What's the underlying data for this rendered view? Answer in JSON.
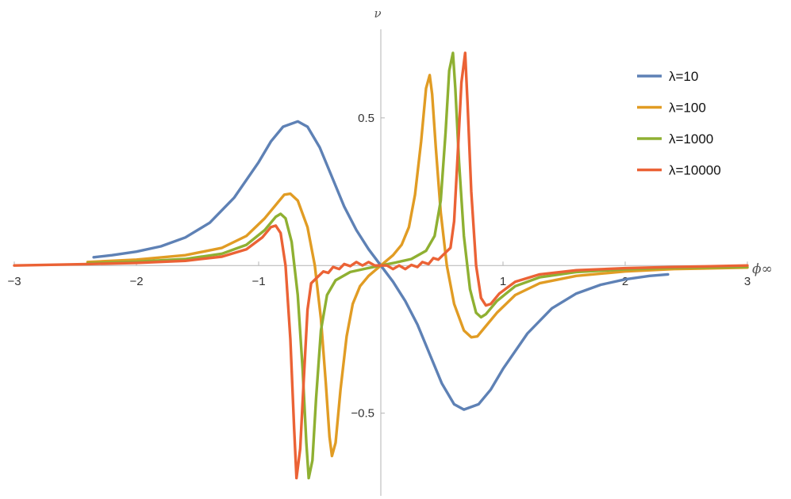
{
  "chart_data": {
    "type": "line",
    "title": "",
    "xlabel": "ϕ∞",
    "ylabel": "ν",
    "xlim": [
      -3,
      3
    ],
    "ylim": [
      -0.78,
      0.8
    ],
    "x_ticks": [
      -3,
      -2,
      -1,
      1,
      2,
      3
    ],
    "x_tick_labels": [
      "−3",
      "−2",
      "−1",
      "1",
      "2",
      "3"
    ],
    "y_ticks": [
      -0.5,
      0.5
    ],
    "y_tick_labels": [
      "−0.5",
      "0.5"
    ],
    "grid": false,
    "legend_position": "top-right",
    "series": [
      {
        "name": "λ=10",
        "color": "#5e81b5",
        "points": [
          [
            -2.35,
            0.028
          ],
          [
            -2.2,
            0.035
          ],
          [
            -2.0,
            0.047
          ],
          [
            -1.8,
            0.065
          ],
          [
            -1.6,
            0.095
          ],
          [
            -1.4,
            0.145
          ],
          [
            -1.2,
            0.23
          ],
          [
            -1.0,
            0.35
          ],
          [
            -0.9,
            0.42
          ],
          [
            -0.8,
            0.47
          ],
          [
            -0.68,
            0.488
          ],
          [
            -0.6,
            0.47
          ],
          [
            -0.5,
            0.4
          ],
          [
            -0.4,
            0.3
          ],
          [
            -0.3,
            0.2
          ],
          [
            -0.2,
            0.12
          ],
          [
            -0.1,
            0.055
          ],
          [
            0.0,
            0.0
          ],
          [
            0.1,
            -0.055
          ],
          [
            0.2,
            -0.12
          ],
          [
            0.3,
            -0.2
          ],
          [
            0.4,
            -0.3
          ],
          [
            0.5,
            -0.4
          ],
          [
            0.6,
            -0.47
          ],
          [
            0.68,
            -0.488
          ],
          [
            0.8,
            -0.47
          ],
          [
            0.9,
            -0.42
          ],
          [
            1.0,
            -0.35
          ],
          [
            1.2,
            -0.23
          ],
          [
            1.4,
            -0.145
          ],
          [
            1.6,
            -0.095
          ],
          [
            1.8,
            -0.065
          ],
          [
            2.0,
            -0.047
          ],
          [
            2.2,
            -0.035
          ],
          [
            2.35,
            -0.03
          ]
        ]
      },
      {
        "name": "λ=100",
        "color": "#e19c24",
        "points": [
          [
            -2.4,
            0.012
          ],
          [
            -2.0,
            0.02
          ],
          [
            -1.6,
            0.035
          ],
          [
            -1.3,
            0.06
          ],
          [
            -1.1,
            0.1
          ],
          [
            -0.95,
            0.16
          ],
          [
            -0.85,
            0.21
          ],
          [
            -0.79,
            0.24
          ],
          [
            -0.74,
            0.243
          ],
          [
            -0.68,
            0.22
          ],
          [
            -0.6,
            0.13
          ],
          [
            -0.54,
            0.0
          ],
          [
            -0.49,
            -0.18
          ],
          [
            -0.45,
            -0.4
          ],
          [
            -0.42,
            -0.58
          ],
          [
            -0.4,
            -0.645
          ],
          [
            -0.37,
            -0.6
          ],
          [
            -0.33,
            -0.42
          ],
          [
            -0.28,
            -0.24
          ],
          [
            -0.23,
            -0.13
          ],
          [
            -0.17,
            -0.07
          ],
          [
            -0.1,
            -0.035
          ],
          [
            0.0,
            0.0
          ],
          [
            0.1,
            0.035
          ],
          [
            0.17,
            0.07
          ],
          [
            0.23,
            0.13
          ],
          [
            0.28,
            0.24
          ],
          [
            0.33,
            0.42
          ],
          [
            0.37,
            0.6
          ],
          [
            0.4,
            0.645
          ],
          [
            0.42,
            0.58
          ],
          [
            0.45,
            0.4
          ],
          [
            0.49,
            0.18
          ],
          [
            0.54,
            0.0
          ],
          [
            0.6,
            -0.13
          ],
          [
            0.68,
            -0.22
          ],
          [
            0.74,
            -0.243
          ],
          [
            0.79,
            -0.24
          ],
          [
            0.85,
            -0.21
          ],
          [
            0.95,
            -0.16
          ],
          [
            1.1,
            -0.1
          ],
          [
            1.3,
            -0.06
          ],
          [
            1.6,
            -0.035
          ],
          [
            2.0,
            -0.02
          ],
          [
            2.4,
            -0.012
          ],
          [
            3.0,
            -0.007
          ]
        ]
      },
      {
        "name": "λ=1000",
        "color": "#8fb032",
        "points": [
          [
            -2.4,
            0.008
          ],
          [
            -2.0,
            0.013
          ],
          [
            -1.6,
            0.022
          ],
          [
            -1.3,
            0.04
          ],
          [
            -1.1,
            0.07
          ],
          [
            -0.95,
            0.12
          ],
          [
            -0.86,
            0.165
          ],
          [
            -0.82,
            0.175
          ],
          [
            -0.78,
            0.16
          ],
          [
            -0.73,
            0.08
          ],
          [
            -0.68,
            -0.1
          ],
          [
            -0.64,
            -0.35
          ],
          [
            -0.61,
            -0.6
          ],
          [
            -0.59,
            -0.72
          ],
          [
            -0.56,
            -0.66
          ],
          [
            -0.53,
            -0.45
          ],
          [
            -0.49,
            -0.22
          ],
          [
            -0.44,
            -0.1
          ],
          [
            -0.37,
            -0.05
          ],
          [
            -0.25,
            -0.022
          ],
          [
            -0.12,
            -0.01
          ],
          [
            0.0,
            0.0
          ],
          [
            0.12,
            0.01
          ],
          [
            0.25,
            0.022
          ],
          [
            0.37,
            0.05
          ],
          [
            0.44,
            0.1
          ],
          [
            0.49,
            0.22
          ],
          [
            0.53,
            0.45
          ],
          [
            0.56,
            0.66
          ],
          [
            0.59,
            0.72
          ],
          [
            0.61,
            0.6
          ],
          [
            0.64,
            0.35
          ],
          [
            0.68,
            0.1
          ],
          [
            0.73,
            -0.08
          ],
          [
            0.78,
            -0.16
          ],
          [
            0.82,
            -0.175
          ],
          [
            0.86,
            -0.165
          ],
          [
            0.95,
            -0.12
          ],
          [
            1.1,
            -0.07
          ],
          [
            1.3,
            -0.04
          ],
          [
            1.6,
            -0.022
          ],
          [
            2.0,
            -0.013
          ],
          [
            2.4,
            -0.008
          ],
          [
            3.0,
            -0.005
          ]
        ]
      },
      {
        "name": "λ=10000",
        "color": "#eb6235",
        "points": [
          [
            -3.0,
            0.0
          ],
          [
            -2.4,
            0.005
          ],
          [
            -2.0,
            0.009
          ],
          [
            -1.6,
            0.016
          ],
          [
            -1.3,
            0.03
          ],
          [
            -1.1,
            0.055
          ],
          [
            -0.97,
            0.095
          ],
          [
            -0.9,
            0.13
          ],
          [
            -0.86,
            0.135
          ],
          [
            -0.82,
            0.11
          ],
          [
            -0.78,
            0.0
          ],
          [
            -0.74,
            -0.25
          ],
          [
            -0.71,
            -0.55
          ],
          [
            -0.69,
            -0.72
          ],
          [
            -0.66,
            -0.62
          ],
          [
            -0.63,
            -0.38
          ],
          [
            -0.6,
            -0.15
          ],
          [
            -0.57,
            -0.06
          ],
          [
            -0.52,
            -0.04
          ],
          [
            -0.47,
            -0.02
          ],
          [
            -0.43,
            -0.025
          ],
          [
            -0.39,
            -0.005
          ],
          [
            -0.34,
            -0.012
          ],
          [
            -0.3,
            0.005
          ],
          [
            -0.25,
            -0.002
          ],
          [
            -0.2,
            0.012
          ],
          [
            -0.15,
            0.0
          ],
          [
            -0.1,
            0.012
          ],
          [
            -0.05,
            0.0
          ],
          [
            0.0,
            0.0
          ],
          [
            0.05,
            0.0
          ],
          [
            0.1,
            -0.012
          ],
          [
            0.15,
            0.0
          ],
          [
            0.2,
            -0.012
          ],
          [
            0.25,
            0.002
          ],
          [
            0.3,
            -0.005
          ],
          [
            0.34,
            0.012
          ],
          [
            0.39,
            0.005
          ],
          [
            0.43,
            0.025
          ],
          [
            0.47,
            0.02
          ],
          [
            0.52,
            0.04
          ],
          [
            0.57,
            0.06
          ],
          [
            0.6,
            0.15
          ],
          [
            0.63,
            0.38
          ],
          [
            0.66,
            0.62
          ],
          [
            0.69,
            0.72
          ],
          [
            0.71,
            0.55
          ],
          [
            0.74,
            0.25
          ],
          [
            0.78,
            0.0
          ],
          [
            0.82,
            -0.11
          ],
          [
            0.86,
            -0.135
          ],
          [
            0.9,
            -0.13
          ],
          [
            0.97,
            -0.095
          ],
          [
            1.1,
            -0.055
          ],
          [
            1.3,
            -0.03
          ],
          [
            1.6,
            -0.016
          ],
          [
            2.0,
            -0.009
          ],
          [
            2.4,
            -0.005
          ],
          [
            3.0,
            0.0
          ]
        ]
      }
    ]
  }
}
